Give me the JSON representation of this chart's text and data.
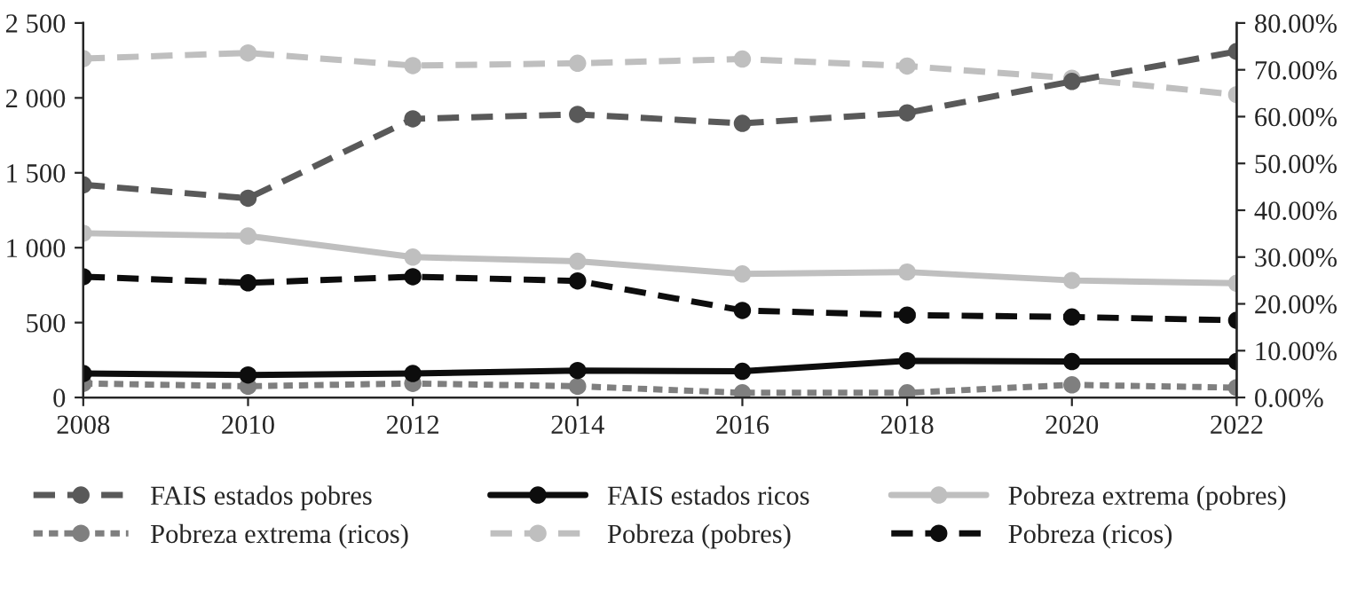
{
  "chart_data": {
    "type": "line",
    "x": [
      2008,
      2010,
      2012,
      2014,
      2016,
      2018,
      2020,
      2022
    ],
    "xlim": [
      2008,
      2022
    ],
    "xticks": [
      2008,
      2010,
      2012,
      2014,
      2016,
      2018,
      2020,
      2022
    ],
    "ylim": [
      0,
      2500
    ],
    "yticks": [
      0,
      500,
      {
        "value": 1000,
        "label": "1 000"
      },
      {
        "value": 1500,
        "label": "1 500"
      },
      {
        "value": 2000,
        "label": "2 000"
      },
      {
        "value": 2500,
        "label": "2 500"
      }
    ],
    "y2lim": [
      0,
      80
    ],
    "y2ticks": [
      {
        "value": 0,
        "label": "0.00%"
      },
      {
        "value": 10,
        "label": "10.00%"
      },
      {
        "value": 20,
        "label": "20.00%"
      },
      {
        "value": 30,
        "label": "30.00%"
      },
      {
        "value": 40,
        "label": "40.00%"
      },
      {
        "value": 50,
        "label": "50.00%"
      },
      {
        "value": 60,
        "label": "60.00%"
      },
      {
        "value": 70,
        "label": "70.00%"
      },
      {
        "value": 80,
        "label": "80.00%"
      }
    ],
    "grid": false,
    "legend": "bottom",
    "marker": "circle",
    "series": [
      {
        "name": "FAIS estados pobres",
        "color": "#595959",
        "line_style": "dashed",
        "values": [
          1420,
          1330,
          1860,
          1890,
          1830,
          1900,
          2110,
          2310
        ]
      },
      {
        "name": "FAIS estados ricos",
        "color": "#0d0d0d",
        "line_style": "solid",
        "values": [
          160,
          150,
          160,
          180,
          175,
          245,
          240,
          240
        ]
      },
      {
        "name": "Pobreza extrema (pobres)",
        "color": "#bfbfbf",
        "line_style": "solid",
        "axis": "y2",
        "values": [
          35.1,
          34.5,
          30.0,
          29.1,
          26.4,
          26.8,
          25.0,
          24.4
        ]
      },
      {
        "name": "Pobreza extrema (ricos)",
        "color": "#7f7f7f",
        "line_style": "dotted",
        "axis": "y2",
        "values": [
          3.0,
          2.4,
          3.0,
          2.4,
          1.0,
          1.0,
          2.7,
          2.1
        ]
      },
      {
        "name": "Pobreza (pobres)",
        "color": "#bfbfbf",
        "line_style": "dashed",
        "axis": "y2",
        "values": [
          72.4,
          73.6,
          70.9,
          71.4,
          72.3,
          70.8,
          68.2,
          64.7
        ]
      },
      {
        "name": "Pobreza (ricos)",
        "color": "#0d0d0d",
        "line_style": "dashed",
        "axis": "y2",
        "values": [
          25.8,
          24.5,
          25.8,
          24.9,
          18.6,
          17.6,
          17.2,
          16.5
        ]
      }
    ]
  }
}
